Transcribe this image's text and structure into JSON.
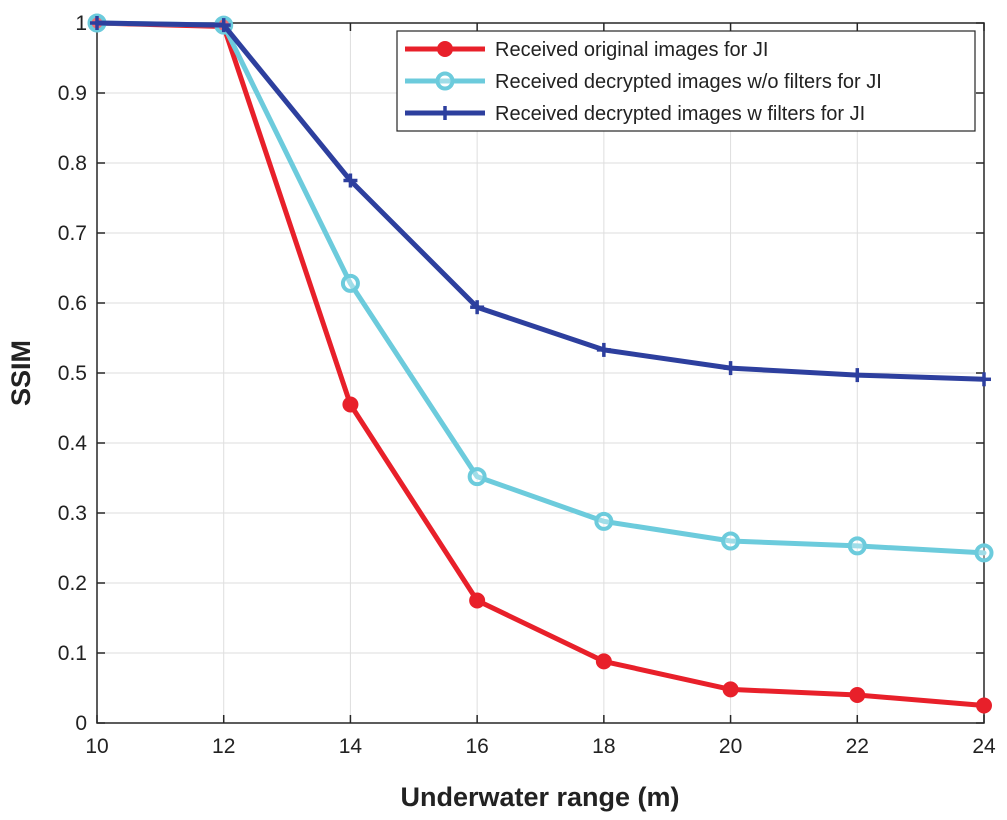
{
  "chart_data": {
    "type": "line",
    "title": "",
    "xlabel": "Underwater range (m)",
    "ylabel": "SSIM",
    "xlim": [
      10,
      24
    ],
    "ylim": [
      0,
      1
    ],
    "grid": true,
    "legend_position": "top-right",
    "x": [
      10,
      12,
      14,
      16,
      18,
      20,
      22,
      24
    ],
    "xticks": [
      "10",
      "12",
      "14",
      "16",
      "18",
      "20",
      "22",
      "24"
    ],
    "yticks": [
      "0",
      "0.1",
      "0.2",
      "0.3",
      "0.4",
      "0.5",
      "0.6",
      "0.7",
      "0.8",
      "0.9",
      "1"
    ],
    "series": [
      {
        "name": "Received original images for JI",
        "color": "#e8202a",
        "marker": "filled-circle",
        "values": [
          1.0,
          0.995,
          0.455,
          0.175,
          0.088,
          0.048,
          0.04,
          0.025
        ]
      },
      {
        "name": "Received decrypted images w/o filters for JI",
        "color": "#6ccbdc",
        "marker": "open-circle",
        "values": [
          1.0,
          0.997,
          0.628,
          0.352,
          0.288,
          0.26,
          0.253,
          0.243
        ]
      },
      {
        "name": "Received decrypted images w filters for JI",
        "color": "#2d3f9e",
        "marker": "plus",
        "values": [
          1.0,
          0.997,
          0.775,
          0.594,
          0.533,
          0.507,
          0.497,
          0.491
        ]
      }
    ]
  }
}
